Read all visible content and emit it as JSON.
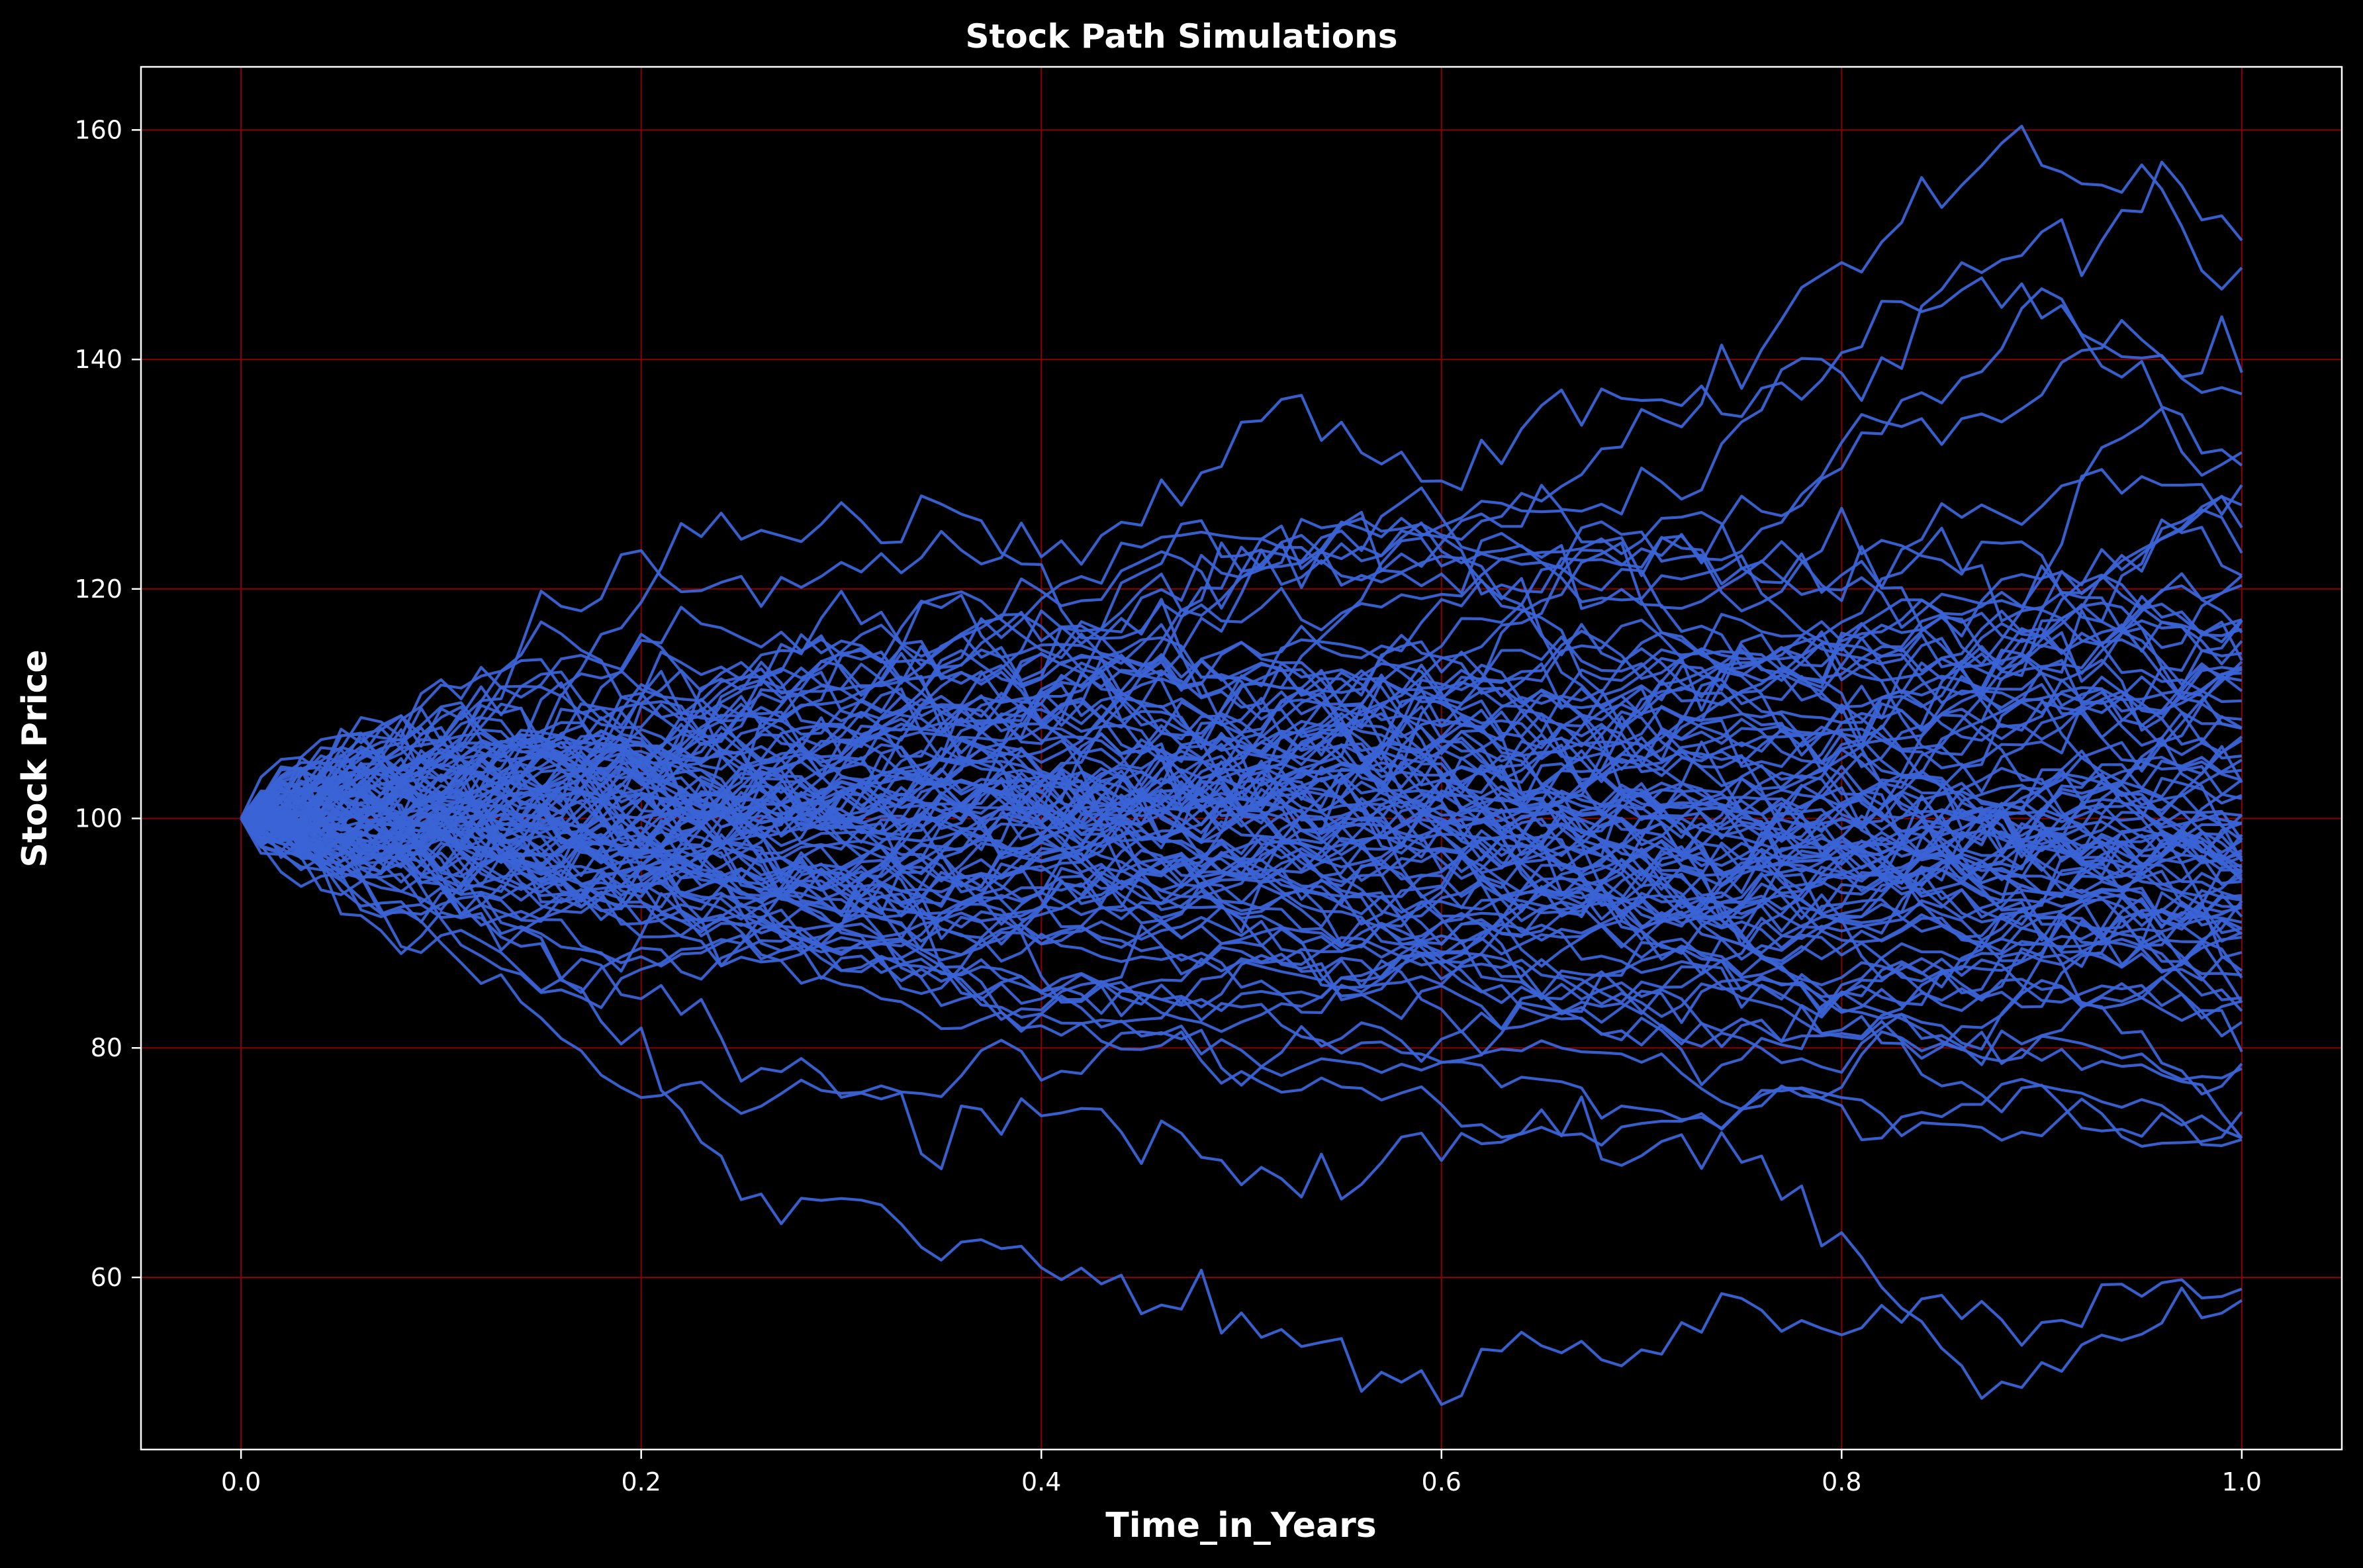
{
  "chart_data": {
    "type": "line",
    "title": "Stock Path Simulations",
    "xlabel": "Time_in_Years",
    "ylabel": "Stock Price",
    "xlim": [
      -0.05,
      1.05
    ],
    "ylim": [
      45,
      165.5
    ],
    "xticks": [
      0.0,
      0.2,
      0.4,
      0.6,
      0.8,
      1.0
    ],
    "xtick_labels": [
      "0.0",
      "0.2",
      "0.4",
      "0.6",
      "0.8",
      "1.0"
    ],
    "yticks": [
      60,
      80,
      100,
      120,
      140,
      160
    ],
    "ytick_labels": [
      "60",
      "80",
      "100",
      "120",
      "140",
      "160"
    ],
    "grid": true,
    "legend": false,
    "colors": {
      "background": "#000000",
      "line": "#3a63d6",
      "grid": "#8b0000",
      "text": "#ffffff",
      "axes": "#ffffff"
    },
    "start_value": 100,
    "num_paths": 100,
    "num_steps": 100,
    "series": [
      {
        "x": [
          0.0,
          0.05,
          0.1,
          0.15,
          0.2,
          0.25,
          0.3,
          0.35,
          0.4,
          0.45,
          0.5,
          0.52,
          0.55,
          0.6,
          0.65,
          0.7,
          0.75,
          0.8,
          0.85,
          0.9,
          0.95,
          1.0
        ],
        "values": [
          100,
          106,
          109,
          117,
          121,
          120,
          122,
          124,
          122,
          126,
          133,
          137,
          133,
          130,
          134,
          137,
          136,
          140,
          147,
          145,
          140,
          137
        ]
      },
      {
        "x": [
          0.0,
          0.05,
          0.1,
          0.15,
          0.2,
          0.25,
          0.3,
          0.35,
          0.4,
          0.45,
          0.5,
          0.55,
          0.6,
          0.65,
          0.7,
          0.75,
          0.78,
          0.8,
          0.85,
          0.88,
          0.9,
          0.95,
          0.98,
          1.0
        ],
        "values": [
          100,
          103,
          106,
          104,
          107,
          109,
          112,
          115,
          114,
          118,
          122,
          126,
          124,
          128,
          134,
          139,
          148,
          147,
          155,
          160,
          158,
          155,
          149,
          148
        ]
      },
      {
        "x": [
          0.0,
          0.05,
          0.1,
          0.15,
          0.2,
          0.25,
          0.3,
          0.35,
          0.4,
          0.45,
          0.5,
          0.55,
          0.6,
          0.65,
          0.7,
          0.75,
          0.8,
          0.85,
          0.88,
          0.92,
          0.96,
          1.0
        ],
        "values": [
          100,
          96,
          93,
          89,
          85,
          80,
          76,
          73,
          75,
          72,
          70,
          69,
          72,
          74,
          71,
          72,
          63,
          54,
          51,
          54,
          57,
          58
        ]
      },
      {
        "x": [
          0.0,
          0.05,
          0.1,
          0.15,
          0.2,
          0.25,
          0.3,
          0.35,
          0.4,
          0.45,
          0.5,
          0.55,
          0.6,
          0.65,
          0.7,
          0.75,
          0.8,
          0.85,
          0.9,
          0.95,
          1.0
        ],
        "values": [
          100,
          97,
          94,
          89,
          78,
          67,
          66,
          63,
          61,
          59,
          56,
          53,
          51,
          55,
          55,
          57,
          55,
          58,
          55,
          59,
          59
        ]
      }
    ]
  }
}
